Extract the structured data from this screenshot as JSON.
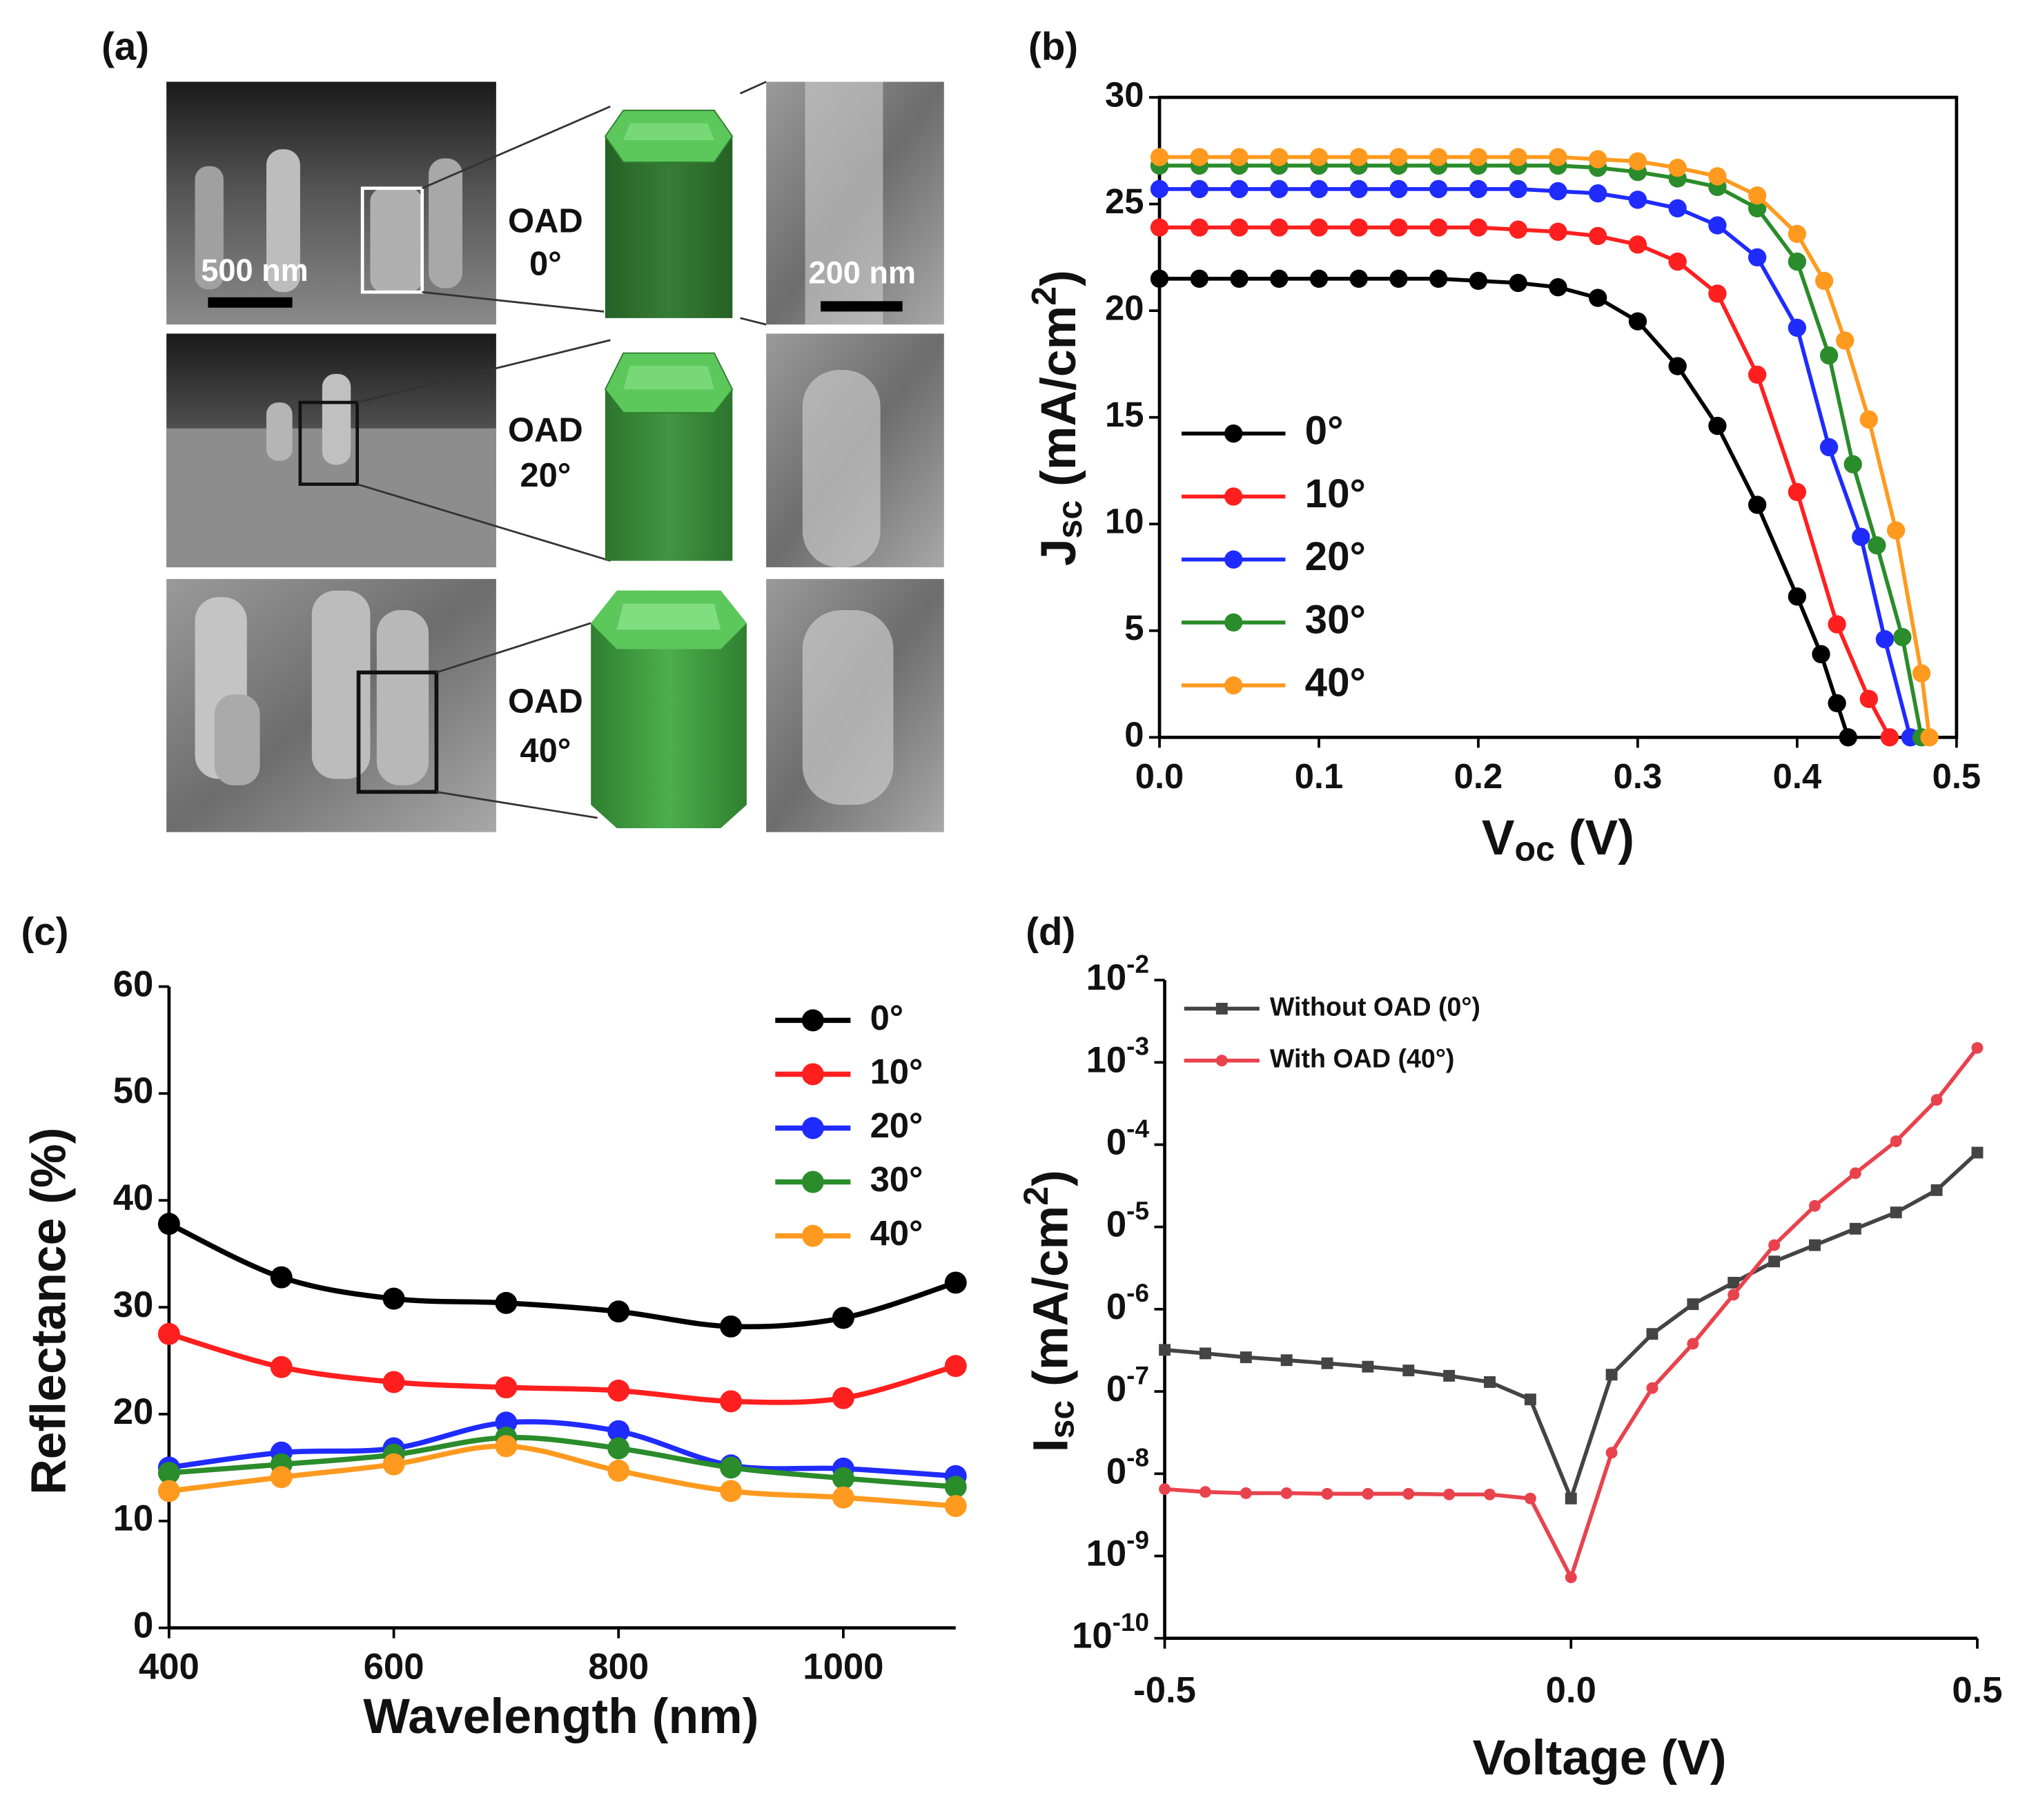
{
  "panel_a": {
    "label": "(a)",
    "scale_bars": [
      "500 nm",
      "200 nm"
    ],
    "rows": [
      {
        "oad": "OAD",
        "angle": "0°"
      },
      {
        "oad": "OAD",
        "angle": "20°"
      },
      {
        "oad": "OAD",
        "angle": "40°"
      }
    ]
  },
  "chart_data": [
    {
      "type": "line",
      "panel": "(b)",
      "xlabel": [
        "V",
        "oc",
        " (V)"
      ],
      "ylabel": [
        "J",
        "sc",
        " (mA/cm",
        "2",
        ")"
      ],
      "xlim": [
        0,
        0.5
      ],
      "ylim": [
        0,
        30
      ],
      "xticks": [
        {
          "value": 0,
          "label": "0.0"
        },
        0.1,
        0.2,
        0.3,
        0.4,
        0.5
      ],
      "yticks": [
        0,
        5,
        10,
        15,
        20,
        25,
        30
      ],
      "legend": "left",
      "series": [
        {
          "name": "0°",
          "color": "#000000",
          "marker": "circle",
          "x": [
            0,
            0.025,
            0.05,
            0.075,
            0.1,
            0.125,
            0.15,
            0.175,
            0.2,
            0.225,
            0.25,
            0.275,
            0.3,
            0.325,
            0.35,
            0.375,
            0.4,
            0.415,
            0.425,
            0.432
          ],
          "values": [
            21.5,
            21.5,
            21.5,
            21.5,
            21.5,
            21.5,
            21.5,
            21.5,
            21.4,
            21.3,
            21.1,
            20.6,
            19.5,
            17.4,
            14.6,
            10.9,
            6.6,
            3.9,
            1.6,
            0
          ]
        },
        {
          "name": "10°",
          "color": "#ff1f1f",
          "marker": "circle",
          "x": [
            0,
            0.025,
            0.05,
            0.075,
            0.1,
            0.125,
            0.15,
            0.175,
            0.2,
            0.225,
            0.25,
            0.275,
            0.3,
            0.325,
            0.35,
            0.375,
            0.4,
            0.425,
            0.445,
            0.458
          ],
          "values": [
            23.9,
            23.9,
            23.9,
            23.9,
            23.9,
            23.9,
            23.9,
            23.9,
            23.9,
            23.8,
            23.7,
            23.5,
            23.1,
            22.3,
            20.8,
            17.0,
            11.5,
            5.3,
            1.8,
            0
          ]
        },
        {
          "name": "20°",
          "color": "#1f2bff",
          "marker": "circle",
          "x": [
            0,
            0.025,
            0.05,
            0.075,
            0.1,
            0.125,
            0.15,
            0.175,
            0.2,
            0.225,
            0.25,
            0.275,
            0.3,
            0.325,
            0.35,
            0.375,
            0.4,
            0.42,
            0.44,
            0.455,
            0.471
          ],
          "values": [
            25.7,
            25.7,
            25.7,
            25.7,
            25.7,
            25.7,
            25.7,
            25.7,
            25.7,
            25.7,
            25.6,
            25.5,
            25.2,
            24.8,
            24.0,
            22.5,
            19.2,
            13.6,
            9.4,
            4.6,
            0
          ]
        },
        {
          "name": "30°",
          "color": "#2a8c2a",
          "marker": "circle",
          "x": [
            0,
            0.025,
            0.05,
            0.075,
            0.1,
            0.125,
            0.15,
            0.175,
            0.2,
            0.225,
            0.25,
            0.275,
            0.3,
            0.325,
            0.35,
            0.375,
            0.4,
            0.42,
            0.435,
            0.45,
            0.466,
            0.478
          ],
          "values": [
            26.8,
            26.8,
            26.8,
            26.8,
            26.8,
            26.8,
            26.8,
            26.8,
            26.8,
            26.8,
            26.8,
            26.7,
            26.5,
            26.2,
            25.8,
            24.8,
            22.3,
            17.9,
            12.8,
            9.0,
            4.7,
            0
          ]
        },
        {
          "name": "40°",
          "color": "#ff9a1f",
          "marker": "circle",
          "x": [
            0,
            0.025,
            0.05,
            0.075,
            0.1,
            0.125,
            0.15,
            0.175,
            0.2,
            0.225,
            0.25,
            0.275,
            0.3,
            0.325,
            0.35,
            0.375,
            0.4,
            0.417,
            0.43,
            0.445,
            0.462,
            0.478,
            0.483
          ],
          "values": [
            27.2,
            27.2,
            27.2,
            27.2,
            27.2,
            27.2,
            27.2,
            27.2,
            27.2,
            27.2,
            27.2,
            27.1,
            27.0,
            26.7,
            26.3,
            25.4,
            23.6,
            21.4,
            18.6,
            14.9,
            9.7,
            3.0,
            0
          ]
        }
      ]
    },
    {
      "type": "line",
      "panel": "(c)",
      "xlabel": "Wavelength (nm)",
      "ylabel": "Reflectance (%)",
      "smooth": true,
      "xlim": [
        400,
        1100
      ],
      "ylim": [
        0,
        60
      ],
      "xticks": [
        400,
        600,
        800,
        1000
      ],
      "yticks": [
        0,
        10,
        20,
        30,
        40,
        50,
        60
      ],
      "legend": "upper right",
      "series": [
        {
          "name": "0°",
          "color": "#000000",
          "marker": "circle",
          "x": [
            400,
            500,
            600,
            700,
            800,
            900,
            1000,
            1100
          ],
          "values": [
            37.8,
            32.8,
            30.8,
            30.4,
            29.6,
            28.2,
            29.0,
            32.3
          ]
        },
        {
          "name": "10°",
          "color": "#ff1f1f",
          "marker": "circle",
          "x": [
            400,
            500,
            600,
            700,
            800,
            900,
            1000,
            1100
          ],
          "values": [
            27.5,
            24.4,
            23.0,
            22.5,
            22.2,
            21.2,
            21.5,
            24.5
          ]
        },
        {
          "name": "20°",
          "color": "#1f2bff",
          "marker": "circle",
          "x": [
            400,
            500,
            600,
            700,
            800,
            900,
            1000,
            1100
          ],
          "values": [
            15.0,
            16.4,
            16.8,
            19.2,
            18.4,
            15.2,
            14.9,
            14.2
          ]
        },
        {
          "name": "30°",
          "color": "#2a8c2a",
          "marker": "circle",
          "x": [
            400,
            500,
            600,
            700,
            800,
            900,
            1000,
            1100
          ],
          "values": [
            14.5,
            15.3,
            16.2,
            17.8,
            16.8,
            15.0,
            14.0,
            13.2
          ]
        },
        {
          "name": "40°",
          "color": "#ff9a1f",
          "marker": "circle",
          "x": [
            400,
            500,
            600,
            700,
            800,
            900,
            1000,
            1100
          ],
          "values": [
            12.8,
            14.1,
            15.3,
            17.0,
            14.7,
            12.8,
            12.2,
            11.4
          ]
        }
      ]
    },
    {
      "type": "line",
      "panel": "(d)",
      "xlabel": "Voltage (V)",
      "ylabel": [
        "I",
        "sc",
        " (mA/cm",
        "2",
        ")"
      ],
      "ylog": true,
      "xlim": [
        -0.5,
        0.5
      ],
      "ylim": [
        1e-10,
        0.01
      ],
      "xticks": [
        -0.5,
        {
          "value": 0,
          "label": "0.0"
        },
        0.5
      ],
      "yticks": [
        {
          "value": 0.01,
          "label": "10",
          "exp": "-2"
        },
        {
          "value": 0.001,
          "label": "10",
          "exp": "-3"
        },
        {
          "value": 0.0001,
          "label": "0",
          "exp": "-4"
        },
        {
          "value": 1e-05,
          "label": "0",
          "exp": "-5"
        },
        {
          "value": 1e-06,
          "label": "0",
          "exp": "-6"
        },
        {
          "value": 1e-07,
          "label": "0",
          "exp": "-7"
        },
        {
          "value": 1e-08,
          "label": "0",
          "exp": "-8"
        },
        {
          "value": 1e-09,
          "label": "10",
          "exp": "-9"
        },
        {
          "value": 1e-10,
          "label": "10",
          "exp": "-10"
        }
      ],
      "legend": "upper left",
      "series": [
        {
          "name": "Without OAD (0°)",
          "color": "#444444",
          "marker": "square",
          "x": [
            -0.5,
            -0.45,
            -0.4,
            -0.35,
            -0.3,
            -0.25,
            -0.2,
            -0.15,
            -0.1,
            -0.05,
            0,
            0.05,
            0.1,
            0.15,
            0.2,
            0.25,
            0.3,
            0.35,
            0.4,
            0.45,
            0.5
          ],
          "values": [
            3.2e-07,
            2.9e-07,
            2.6e-07,
            2.4e-07,
            2.2e-07,
            2e-07,
            1.8e-07,
            1.55e-07,
            1.3e-07,
            8e-08,
            5e-09,
            1.6e-07,
            5e-07,
            1.15e-06,
            2.1e-06,
            3.8e-06,
            6e-06,
            9.5e-06,
            1.5e-05,
            2.8e-05,
            8e-05
          ]
        },
        {
          "name": "With OAD (40°)",
          "color": "#e8434d",
          "marker": "circle",
          "x": [
            -0.5,
            -0.45,
            -0.4,
            -0.35,
            -0.3,
            -0.25,
            -0.2,
            -0.15,
            -0.1,
            -0.05,
            0,
            0.05,
            0.1,
            0.15,
            0.2,
            0.25,
            0.3,
            0.35,
            0.4,
            0.45,
            0.5
          ],
          "values": [
            6.5e-09,
            6e-09,
            5.8e-09,
            5.8e-09,
            5.7e-09,
            5.7e-09,
            5.7e-09,
            5.6e-09,
            5.6e-09,
            5e-09,
            5.5e-10,
            1.8e-08,
            1.1e-07,
            3.8e-07,
            1.5e-06,
            6e-06,
            1.8e-05,
            4.5e-05,
            0.00011,
            0.00035,
            0.0015
          ]
        }
      ]
    }
  ]
}
